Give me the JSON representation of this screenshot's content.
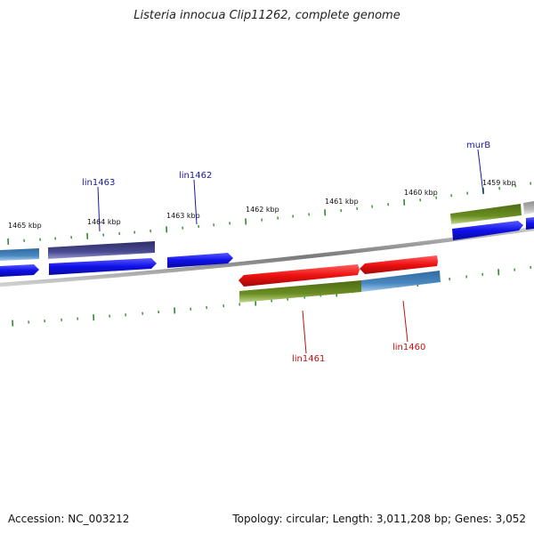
{
  "title": "Listeria innocua Clip11262, complete genome",
  "footer": {
    "accession": "Accession: NC_003212",
    "info": "Topology: circular; Length: 3,011,208 bp; Genes: 3,052"
  },
  "colors": {
    "backbone": "#8a8a8a",
    "ticks": "#2e8b2e",
    "blue": "#1010e8",
    "navy": "#44448a",
    "steel": "#4a80b8",
    "olive": "#6b8e23",
    "red": "#e81010",
    "gray": "#b8b8b8",
    "label_blue": "#1a1aa0",
    "label_red": "#c01010"
  },
  "kbp_labels": [
    "1465 kbp",
    "1464 kbp",
    "1463 kbp",
    "1462 kbp",
    "1461 kbp",
    "1460 kbp",
    "1459 kbp"
  ],
  "gene_labels": [
    "lin1463",
    "lin1462",
    "murB",
    "lin1461",
    "lin1460"
  ]
}
